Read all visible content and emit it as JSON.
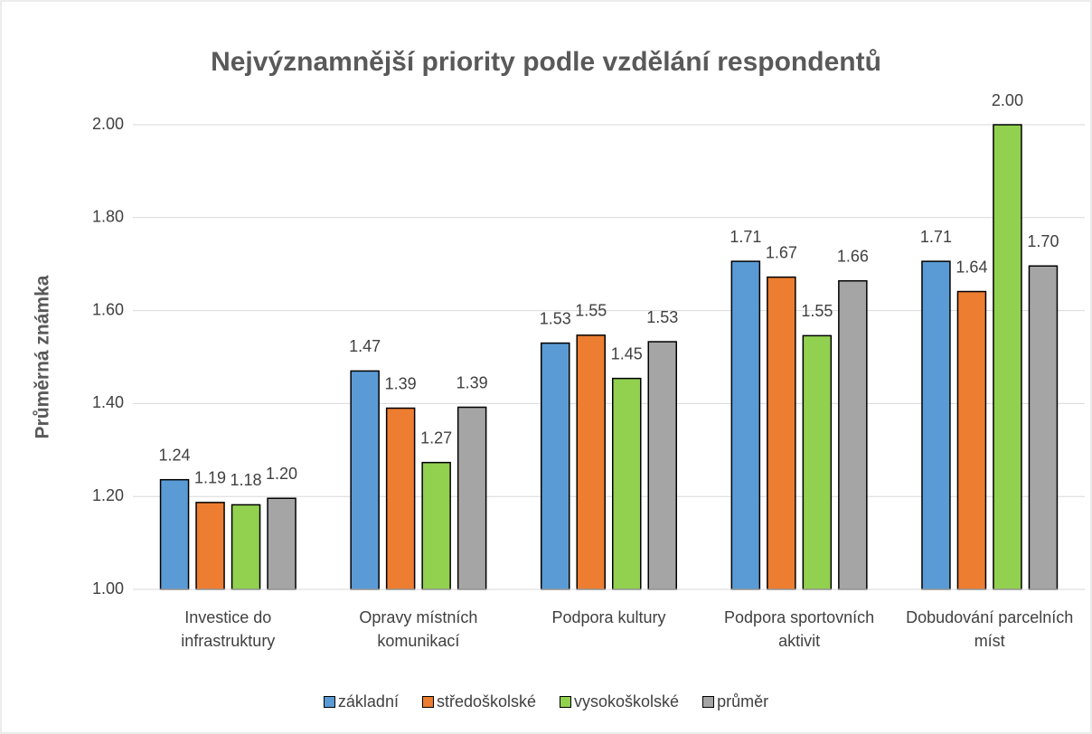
{
  "chart_data": {
    "type": "bar",
    "title": "Nejvýznamnější priority podle vzdělání respondentů",
    "y_label": "Průměrná známka",
    "categories": [
      "Investice do infrastruktury",
      "Opravy místních komunikací",
      "Podpora kultury",
      "Podpora sportovních aktivit",
      "Dobudování parcelních míst"
    ],
    "series": [
      {
        "name": "základní",
        "color": "#5b9bd5",
        "values": [
          1.236,
          1.47,
          1.53,
          1.706,
          1.706
        ],
        "value_labels": [
          "1.24",
          "1.47",
          "1.53",
          "1.71",
          "1.71"
        ]
      },
      {
        "name": "středoškolské",
        "color": "#ed7d31",
        "values": [
          1.187,
          1.39,
          1.547,
          1.672,
          1.641
        ],
        "value_labels": [
          "1.19",
          "1.39",
          "1.55",
          "1.67",
          "1.64"
        ]
      },
      {
        "name": "vysokoškolské",
        "color": "#92d050",
        "values": [
          1.182,
          1.273,
          1.454,
          1.546,
          2.0
        ],
        "value_labels": [
          "1.18",
          "1.27",
          "1.45",
          "1.55",
          "2.00"
        ]
      },
      {
        "name": "průměr",
        "color": "#a5a5a5",
        "values": [
          1.196,
          1.392,
          1.533,
          1.664,
          1.696
        ],
        "value_labels": [
          "1.20",
          "1.39",
          "1.53",
          "1.66",
          "1.70"
        ]
      }
    ],
    "ylim": [
      1,
      2
    ],
    "yticks": [
      {
        "value": 1,
        "label": "1.00"
      },
      {
        "value": 1.2,
        "label": "1.20"
      },
      {
        "value": 1.4,
        "label": "1.40"
      },
      {
        "value": 1.6,
        "label": "1.60"
      },
      {
        "value": 1.8,
        "label": "1.80"
      },
      {
        "value": 2,
        "label": "2.00"
      }
    ],
    "grid": true,
    "legend": "bottom"
  }
}
